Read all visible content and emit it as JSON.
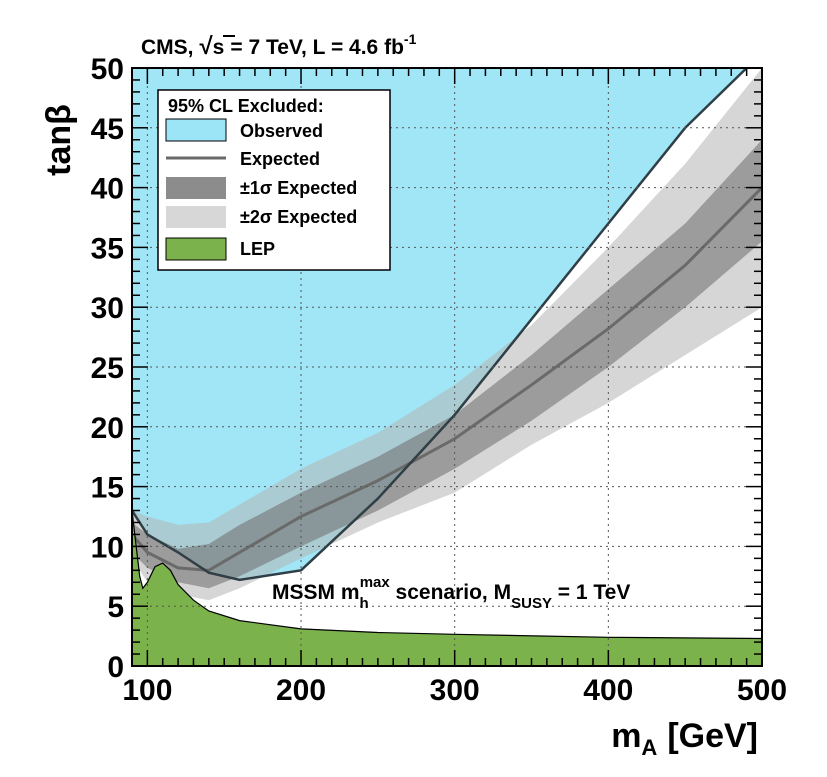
{
  "chart_data": {
    "type": "area",
    "header": {
      "experiment": "CMS,",
      "sqrt": "√",
      "s_symbol": "s",
      "energy": "= 7 TeV, L = 4.6 fb",
      "lumi_exponent": "-1"
    },
    "xlabel": {
      "main": "m",
      "sub": "A",
      "unit": "[GeV]"
    },
    "ylabel": "tanβ",
    "xlim": [
      90,
      500
    ],
    "ylim": [
      0,
      50
    ],
    "xticks": [
      100,
      200,
      300,
      400,
      500
    ],
    "yticks": [
      0,
      5,
      10,
      15,
      20,
      25,
      30,
      35,
      40,
      45,
      50
    ],
    "grid": true,
    "legend": {
      "title": "95% CL Excluded:",
      "placement": "top-left",
      "entries": [
        {
          "key": "observed",
          "label": "Observed",
          "color": "#9ce5f7"
        },
        {
          "key": "expected",
          "label": "Expected",
          "color": "#6a6a6a"
        },
        {
          "key": "one_sigma",
          "label": "±1σ Expected",
          "color": "#8c8c8c"
        },
        {
          "key": "two_sigma",
          "label": "±2σ Expected",
          "color": "#d7d7d7"
        },
        {
          "key": "lep",
          "label": "LEP",
          "color": "#7bb24c"
        }
      ]
    },
    "annotation": {
      "prefix": "MSSM m",
      "sub": "h",
      "sup": "max",
      "middle": " scenario, M",
      "sub2": "SUSY",
      "suffix": " = 1 TeV"
    },
    "series": {
      "observed_boundary": {
        "x": [
          90,
          100,
          120,
          140,
          160,
          200,
          250,
          300,
          350,
          400,
          450,
          490
        ],
        "y": [
          13.0,
          11.0,
          9.5,
          7.8,
          7.2,
          8.0,
          14.0,
          21.0,
          29.0,
          37.0,
          45.0,
          50.0
        ]
      },
      "expected": {
        "x": [
          90,
          100,
          120,
          140,
          160,
          200,
          250,
          300,
          350,
          400,
          450,
          500
        ],
        "y": [
          11.0,
          9.5,
          8.2,
          8.0,
          9.5,
          12.5,
          15.5,
          19.0,
          23.5,
          28.2,
          33.5,
          40.0
        ]
      },
      "one_sigma_upper": {
        "x": [
          90,
          100,
          120,
          140,
          160,
          200,
          250,
          300,
          350,
          400,
          450,
          500
        ],
        "y": [
          12.0,
          11.0,
          9.8,
          10.2,
          11.8,
          14.5,
          17.5,
          21.0,
          26.0,
          31.5,
          37.0,
          44.0
        ]
      },
      "one_sigma_lower": {
        "x": [
          90,
          100,
          120,
          140,
          160,
          200,
          250,
          300,
          350,
          400,
          450,
          500
        ],
        "y": [
          9.5,
          8.2,
          7.0,
          6.5,
          7.5,
          10.0,
          13.0,
          16.5,
          20.5,
          25.0,
          30.0,
          35.5
        ]
      },
      "two_sigma_upper": {
        "x": [
          90,
          100,
          120,
          140,
          160,
          200,
          250,
          300,
          350,
          400,
          450,
          500
        ],
        "y": [
          13.0,
          12.5,
          11.8,
          12.0,
          13.5,
          16.5,
          19.5,
          23.5,
          28.5,
          35.0,
          42.0,
          50.0
        ]
      },
      "two_sigma_lower": {
        "x": [
          90,
          100,
          120,
          140,
          160,
          200,
          250,
          300,
          350,
          400,
          450,
          500
        ],
        "y": [
          9.0,
          7.0,
          6.0,
          5.5,
          6.5,
          9.0,
          12.0,
          14.5,
          18.5,
          22.0,
          26.0,
          30.0
        ]
      },
      "lep_boundary": {
        "x": [
          90,
          95,
          97,
          100,
          105,
          110,
          115,
          120,
          130,
          140,
          160,
          200,
          250,
          300,
          400,
          500
        ],
        "y": [
          13.0,
          7.5,
          6.5,
          7.0,
          8.3,
          8.6,
          8.0,
          6.8,
          5.5,
          4.6,
          3.8,
          3.1,
          2.8,
          2.65,
          2.4,
          2.3
        ]
      }
    }
  }
}
